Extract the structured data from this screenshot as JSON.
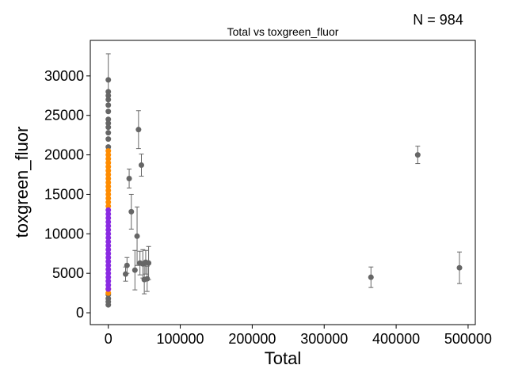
{
  "figure": {
    "annotation": "N = 984"
  },
  "chart_data": {
    "type": "scatter",
    "title": "Total vs toxgreen_fluor",
    "xlabel": "Total",
    "ylabel": "toxgreen_fluor",
    "xlim": [
      -25000,
      510000
    ],
    "ylim": [
      -1500,
      34500
    ],
    "xticks": [
      0,
      100000,
      200000,
      300000,
      400000,
      500000
    ],
    "xtick_labels": [
      "0",
      "100000",
      "200000",
      "300000",
      "400000",
      "500000"
    ],
    "yticks": [
      0,
      5000,
      10000,
      15000,
      20000,
      25000,
      30000
    ],
    "ytick_labels": [
      "0",
      "5000",
      "10000",
      "15000",
      "20000",
      "25000",
      "30000"
    ],
    "grid": false,
    "legend": "none",
    "series": [
      {
        "color": "#666666",
        "error_bars": true,
        "points": [
          {
            "x": 0,
            "y": 29500,
            "err": 3300
          },
          {
            "x": 0,
            "y": 28000,
            "err": 0
          },
          {
            "x": 0,
            "y": 27500,
            "err": 0
          },
          {
            "x": 0,
            "y": 27000,
            "err": 0
          },
          {
            "x": 0,
            "y": 26300,
            "err": 0
          },
          {
            "x": 0,
            "y": 25500,
            "err": 0
          },
          {
            "x": 0,
            "y": 24500,
            "err": 0
          },
          {
            "x": 0,
            "y": 24000,
            "err": 0
          },
          {
            "x": 0,
            "y": 23500,
            "err": 0
          },
          {
            "x": 0,
            "y": 22800,
            "err": 0
          },
          {
            "x": 0,
            "y": 22000,
            "err": 0
          },
          {
            "x": 0,
            "y": 21000,
            "err": 0
          },
          {
            "x": 0,
            "y": 1800,
            "err": 0
          },
          {
            "x": 0,
            "y": 1400,
            "err": 0
          },
          {
            "x": 0,
            "y": 1000,
            "err": 0
          },
          {
            "x": 0,
            "y": 2300,
            "err": 0
          },
          {
            "x": 24000,
            "y": 4900,
            "err": 900
          },
          {
            "x": 26000,
            "y": 6000,
            "err": 1000
          },
          {
            "x": 29000,
            "y": 17000,
            "err": 1200
          },
          {
            "x": 32000,
            "y": 12800,
            "err": 2200
          },
          {
            "x": 37000,
            "y": 5400,
            "err": 2500
          },
          {
            "x": 40000,
            "y": 9700,
            "err": 3700
          },
          {
            "x": 42000,
            "y": 23200,
            "err": 2400
          },
          {
            "x": 44000,
            "y": 6300,
            "err": 1500
          },
          {
            "x": 46000,
            "y": 18700,
            "err": 1400
          },
          {
            "x": 48000,
            "y": 6200,
            "err": 1800
          },
          {
            "x": 50000,
            "y": 4200,
            "err": 1800
          },
          {
            "x": 52000,
            "y": 6400,
            "err": 1500
          },
          {
            "x": 54000,
            "y": 4300,
            "err": 1600
          },
          {
            "x": 56000,
            "y": 6300,
            "err": 2100
          },
          {
            "x": 365000,
            "y": 4500,
            "err": 1300
          },
          {
            "x": 430000,
            "y": 20000,
            "err": 1100
          },
          {
            "x": 488000,
            "y": 5700,
            "err": 2000
          }
        ]
      },
      {
        "color": "#ff8c00",
        "error_bars": false,
        "x": 0,
        "y_values": [
          2500,
          3000,
          13500,
          14000,
          14500,
          15000,
          15500,
          16000,
          16500,
          17000,
          17500,
          18000,
          18500,
          19000,
          19500,
          20000,
          20500
        ]
      },
      {
        "color": "#8a2be2",
        "error_bars": false,
        "x": 0,
        "y_values": [
          3000,
          3500,
          4000,
          4500,
          5000,
          5500,
          6000,
          6500,
          7000,
          7500,
          8000,
          8500,
          9000,
          9500,
          10000,
          10500,
          11000,
          11500,
          12000,
          12500,
          13000
        ]
      }
    ]
  }
}
